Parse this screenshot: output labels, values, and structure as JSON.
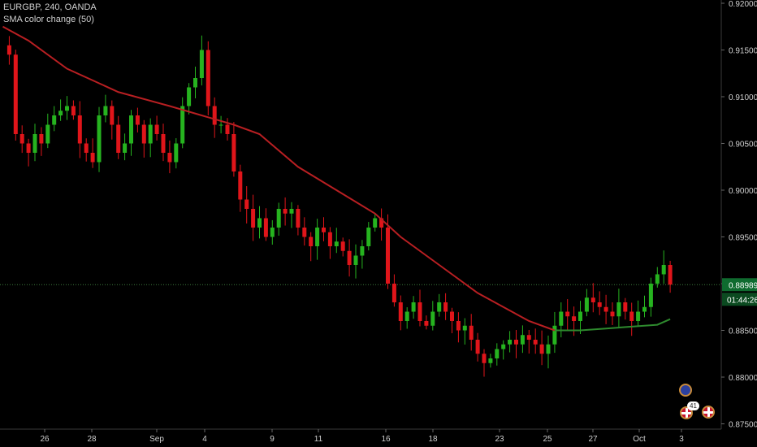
{
  "header": {
    "symbol_line": "EURGBP, 240, OANDA",
    "indicator_line": "SMA color change (50)"
  },
  "price_axis": {
    "labels": [
      "0.92000",
      "0.91500",
      "0.91000",
      "0.90500",
      "0.90000",
      "0.89500",
      "0.89000",
      "0.88500",
      "0.88000",
      "0.87500"
    ]
  },
  "current_price": {
    "value": "0.88989",
    "countdown": "01:44:26",
    "price": 0.88989
  },
  "time_axis": {
    "labels": [
      "26",
      "28",
      "Sep",
      "4",
      "9",
      "11",
      "16",
      "18",
      "23",
      "25",
      "27",
      "Oct",
      "3"
    ]
  },
  "events": {
    "badge_count": "41"
  },
  "colors": {
    "up": "#26b31f",
    "down": "#e0151a",
    "sma_down": "#b81f22",
    "sma_up": "#2e8a2e",
    "background": "#000000",
    "axis_text": "#cfcfcf",
    "price_label_bg": "#0f6b2f",
    "price_line": "#3c7d3c"
  },
  "chart_data": {
    "type": "candlestick",
    "title": "EURGBP, 240, OANDA",
    "indicator": "SMA color change (50)",
    "ylim": [
      0.875,
      0.92
    ],
    "x": [
      "26",
      "28",
      "Sep",
      "4",
      "9",
      "11",
      "16",
      "18",
      "23",
      "25",
      "27",
      "Oct",
      "3"
    ],
    "close_path": [
      0.9155,
      0.9145,
      0.906,
      0.905,
      0.904,
      0.906,
      0.905,
      0.907,
      0.908,
      0.9085,
      0.909,
      0.908,
      0.905,
      0.904,
      0.903,
      0.908,
      0.909,
      0.907,
      0.904,
      0.905,
      0.908,
      0.907,
      0.905,
      0.907,
      0.906,
      0.904,
      0.903,
      0.905,
      0.909,
      0.911,
      0.912,
      0.915,
      0.909,
      0.907,
      0.907,
      0.906,
      0.902,
      0.899,
      0.898,
      0.896,
      0.897,
      0.895,
      0.896,
      0.898,
      0.8975,
      0.898,
      0.896,
      0.895,
      0.894,
      0.896,
      0.8955,
      0.894,
      0.8945,
      0.8935,
      0.892,
      0.893,
      0.894,
      0.896,
      0.897,
      0.896,
      0.89,
      0.888,
      0.886,
      0.887,
      0.888,
      0.886,
      0.8855,
      0.887,
      0.888,
      0.887,
      0.886,
      0.885,
      0.8855,
      0.884,
      0.8825,
      0.8815,
      0.882,
      0.883,
      0.8835,
      0.884,
      0.8835,
      0.8845,
      0.884,
      0.8835,
      0.8825,
      0.8835,
      0.8855,
      0.887,
      0.8865,
      0.886,
      0.887,
      0.8885,
      0.888,
      0.8875,
      0.887,
      0.8865,
      0.888,
      0.887,
      0.886,
      0.887,
      0.8875,
      0.89,
      0.891,
      0.892,
      0.8899
    ],
    "sma": [
      [
        0,
        0.9175
      ],
      [
        4,
        0.916
      ],
      [
        10,
        0.913
      ],
      [
        18,
        0.9105
      ],
      [
        26,
        0.909
      ],
      [
        32,
        0.9078
      ],
      [
        36,
        0.907
      ],
      [
        40,
        0.906
      ],
      [
        46,
        0.9025
      ],
      [
        52,
        0.9
      ],
      [
        58,
        0.8975
      ],
      [
        62,
        0.895
      ],
      [
        66,
        0.893
      ],
      [
        70,
        0.891
      ],
      [
        74,
        0.889
      ],
      [
        78,
        0.8875
      ],
      [
        82,
        0.886
      ],
      [
        86,
        0.885
      ],
      [
        90,
        0.885
      ],
      [
        94,
        0.8852
      ],
      [
        98,
        0.8854
      ],
      [
        102,
        0.8856
      ],
      [
        104,
        0.8862
      ]
    ],
    "sma_turn_index": 86
  }
}
